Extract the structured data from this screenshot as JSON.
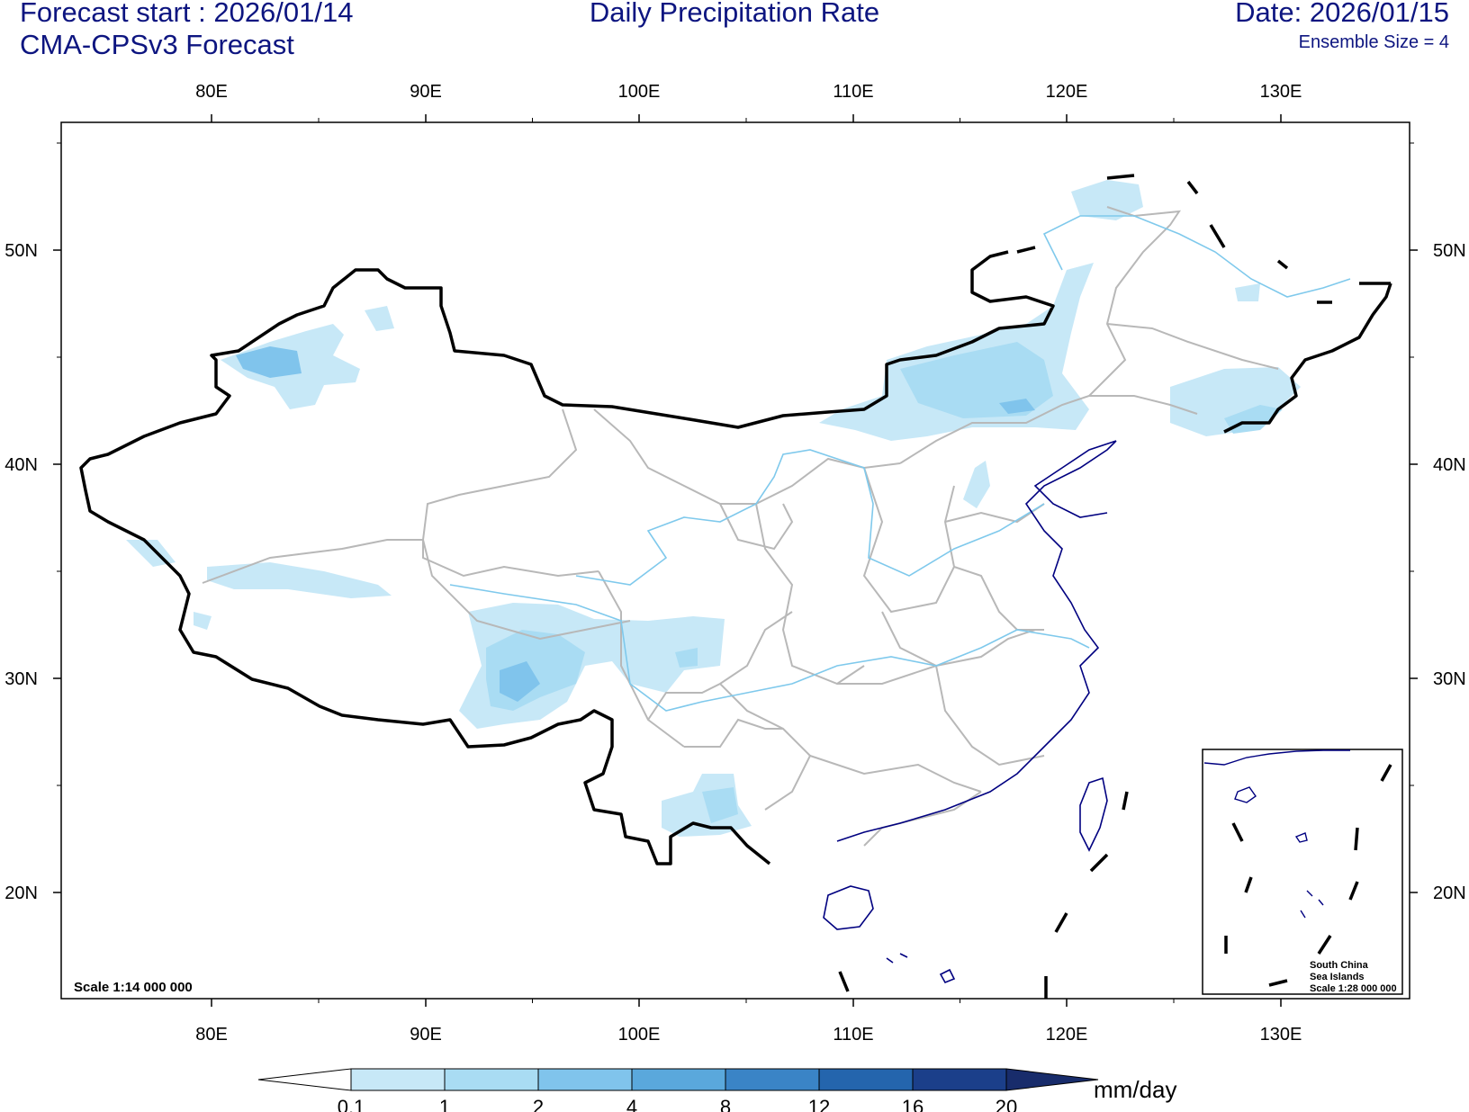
{
  "header": {
    "forecast_start": "Forecast start : 2026/01/14",
    "model": "CMA-CPSv3 Forecast",
    "title": "Daily Precipitation Rate",
    "date": "Date: 2026/01/15",
    "ensemble": "Ensemble Size = 4"
  },
  "map": {
    "lon_labels": [
      "80E",
      "90E",
      "100E",
      "110E",
      "120E",
      "130E"
    ],
    "lat_labels": [
      "50N",
      "40N",
      "30N",
      "20N"
    ],
    "scale_main": "Scale 1:14 000 000",
    "inset": {
      "line1": "South China",
      "line2": "Sea Islands",
      "scale": "Scale 1:28 000 000"
    }
  },
  "colorbar": {
    "unit": "mm/day",
    "levels": [
      "0.1",
      "1",
      "2",
      "4",
      "8",
      "12",
      "16",
      "20"
    ],
    "colors": [
      "#c7e8f7",
      "#a9dcf3",
      "#80c4ec",
      "#5aa8dc",
      "#3a84c6",
      "#2465ad",
      "#1b3f8a",
      "#182c6b"
    ]
  },
  "colors": {
    "title_text": "#0d1580",
    "border": "#000000",
    "province": "#b8b8b8",
    "river": "#7fc9ec",
    "coast": "#000080"
  }
}
